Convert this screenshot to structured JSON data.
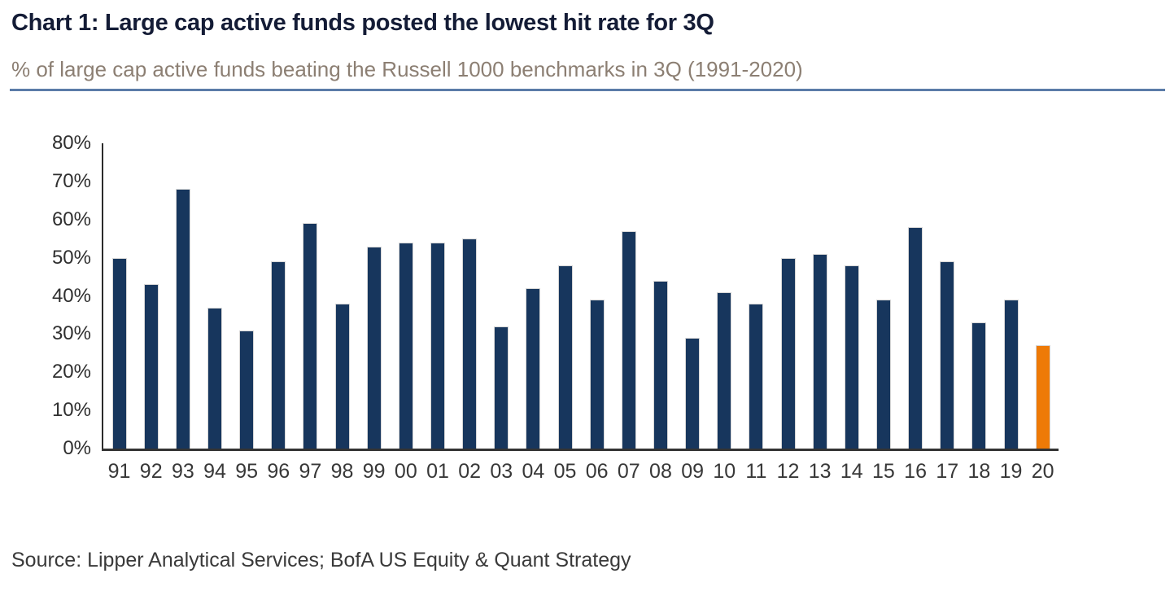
{
  "header": {
    "title": "Chart 1: Large cap active funds posted the lowest hit rate for 3Q",
    "subtitle": "% of large cap active funds beating the Russell 1000 benchmarks in 3Q (1991-2020)",
    "rule_color": "#5B7CA8"
  },
  "chart_data": {
    "type": "bar",
    "title": "Chart 1: Large cap active funds posted the lowest hit rate for 3Q",
    "subtitle": "% of large cap active funds beating the Russell 1000 benchmarks in 3Q (1991-2020)",
    "xlabel": "",
    "ylabel": "% of large cap active funds beating benchmark",
    "unit": "%",
    "categories": [
      "91",
      "92",
      "93",
      "94",
      "95",
      "96",
      "97",
      "98",
      "99",
      "00",
      "01",
      "02",
      "03",
      "04",
      "05",
      "06",
      "07",
      "08",
      "09",
      "10",
      "11",
      "12",
      "13",
      "14",
      "15",
      "16",
      "17",
      "18",
      "19",
      "20"
    ],
    "values": [
      50,
      43,
      68,
      37,
      31,
      49,
      59,
      38,
      53,
      54,
      54,
      55,
      32,
      42,
      48,
      39,
      57,
      44,
      29,
      41,
      38,
      50,
      51,
      48,
      39,
      58,
      49,
      33,
      39,
      27
    ],
    "ylim": [
      0,
      80
    ],
    "y_ticks": [
      80,
      70,
      60,
      50,
      40,
      30,
      20,
      10,
      0
    ],
    "y_tick_suffix": "%",
    "grid": false,
    "legend": false,
    "bar_color": "#17365D",
    "highlight_category": "20",
    "highlight_color": "#EE7A07"
  },
  "footer": {
    "source": "Source: Lipper Analytical Services; BofA US Equity & Quant Strategy"
  }
}
